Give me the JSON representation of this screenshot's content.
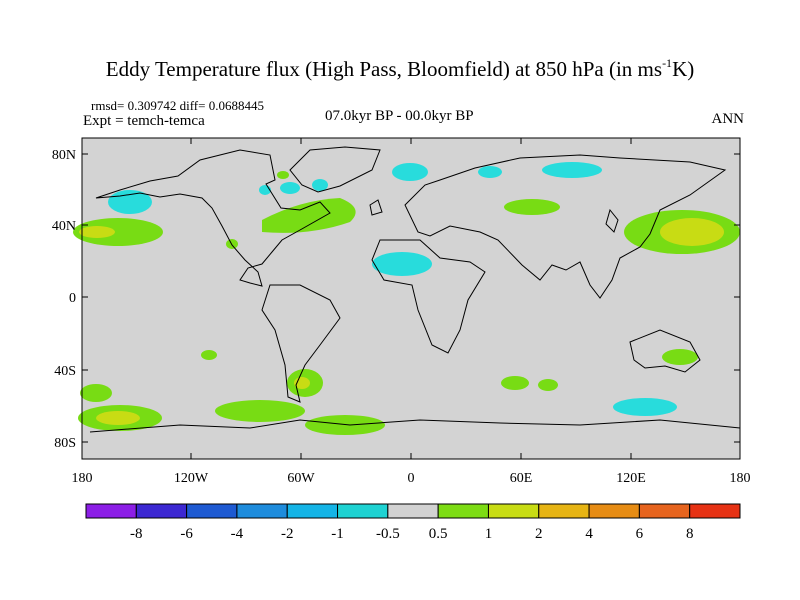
{
  "header": {
    "title_main": "Eddy Temperature flux (High Pass, Bloomfield) at 850 hPa (in ms",
    "title_sup": "-1",
    "title_end": "K)",
    "stats": "rmsd= 0.309742 diff= 0.0688445",
    "expt": "Expt = temch-temca",
    "period": "07.0kyr BP - 00.0kyr BP",
    "season": "ANN"
  },
  "axes": {
    "y_ticks": [
      "80N",
      "40N",
      "0",
      "40S",
      "80S"
    ],
    "x_ticks": [
      "180",
      "120W",
      "60W",
      "0",
      "60E",
      "120E",
      "180"
    ]
  },
  "colorbar": {
    "colors": [
      "#8c1ee6",
      "#3c28d2",
      "#1e5ad2",
      "#1e8cdc",
      "#14b4e6",
      "#1ed2d2",
      "#d2d2d2",
      "#7ddc14",
      "#c8dc14",
      "#e6b414",
      "#e68c14",
      "#e6641e",
      "#e63214"
    ],
    "labels": [
      "-8",
      "-6",
      "-4",
      "-2",
      "-1",
      "-0.5",
      "0.5",
      "1",
      "2",
      "4",
      "6",
      "8"
    ]
  },
  "palette": {
    "neutral": "#d3d3d3",
    "cyan": "#28dcdc",
    "green": "#78dc14",
    "yellow": "#c8dc14"
  }
}
